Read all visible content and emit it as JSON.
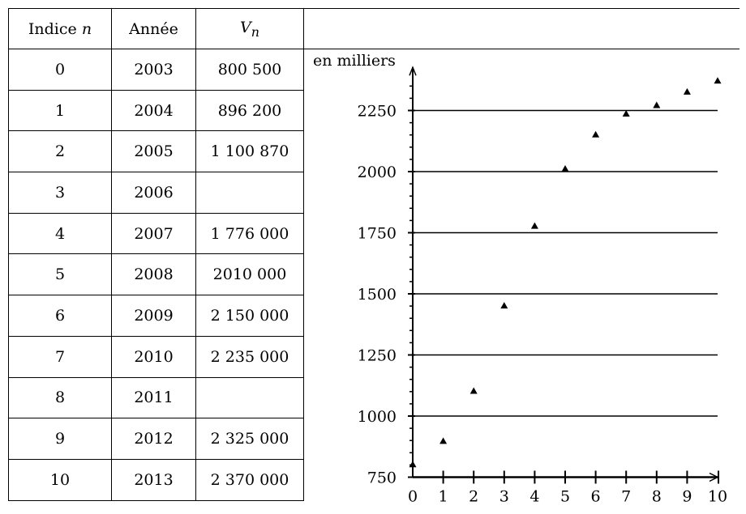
{
  "table": {
    "headers": {
      "index_label": "Indice",
      "index_var": "n",
      "year_label": "Année",
      "value_var": "V",
      "value_sub": "n"
    },
    "rows": [
      {
        "n": "0",
        "year": "2003",
        "value": "800 500"
      },
      {
        "n": "1",
        "year": "2004",
        "value": "896 200"
      },
      {
        "n": "2",
        "year": "2005",
        "value": "1 100 870"
      },
      {
        "n": "3",
        "year": "2006",
        "value": ""
      },
      {
        "n": "4",
        "year": "2007",
        "value": "1 776 000"
      },
      {
        "n": "5",
        "year": "2008",
        "value": "2010 000"
      },
      {
        "n": "6",
        "year": "2009",
        "value": "2 150 000"
      },
      {
        "n": "7",
        "year": "2010",
        "value": "2 235 000"
      },
      {
        "n": "8",
        "year": "2011",
        "value": ""
      },
      {
        "n": "9",
        "year": "2012",
        "value": "2 325 000"
      },
      {
        "n": "10",
        "year": "2013",
        "value": "2 370 000"
      }
    ]
  },
  "chart_data": {
    "type": "scatter",
    "ylabel": "en milliers",
    "xlim": [
      0,
      10
    ],
    "ylim": [
      750,
      2380
    ],
    "x_ticks": [
      0,
      1,
      2,
      3,
      4,
      5,
      6,
      7,
      8,
      9,
      10
    ],
    "y_ticks": [
      750,
      1000,
      1250,
      1500,
      1750,
      2000,
      2250
    ],
    "grid": "horizontal",
    "series": [
      {
        "marker": "triangle",
        "x": [
          0,
          1,
          2,
          3,
          4,
          5,
          6,
          7,
          8,
          9,
          10
        ],
        "y": [
          800.5,
          896.2,
          1100.87,
          1450,
          1776,
          2010,
          2150,
          2235,
          2270,
          2325,
          2370
        ]
      }
    ]
  }
}
